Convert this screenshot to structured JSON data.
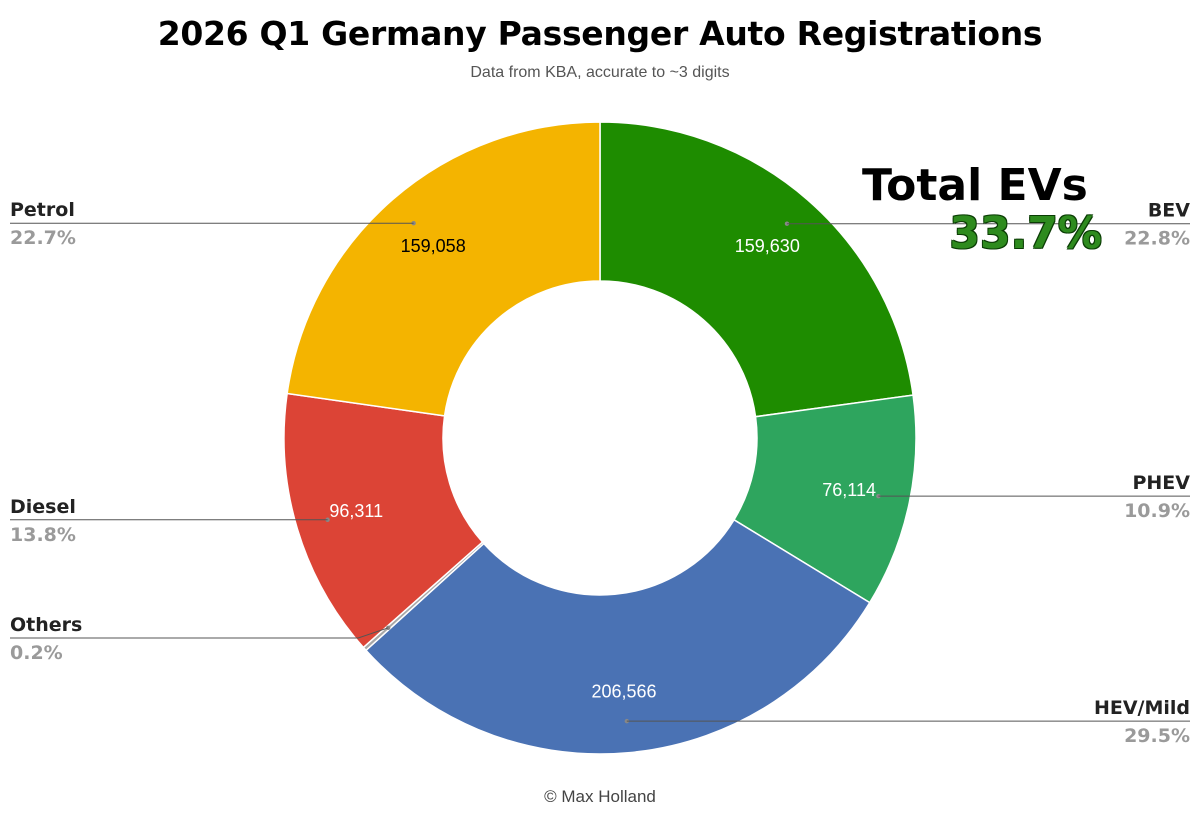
{
  "chart_data": {
    "type": "pie",
    "title": "2026 Q1 Germany Passenger Auto Registrations",
    "subtitle": "Data from KBA, accurate to ~3 digits",
    "donut": true,
    "legend": "outside-labels",
    "slices": [
      {
        "name": "BEV",
        "value": 159630,
        "value_label": "159,630",
        "percent_label": "22.8%",
        "color": "#1e8c00",
        "label_color": "#ffffff"
      },
      {
        "name": "PHEV",
        "value": 76114,
        "value_label": "76,114",
        "percent_label": "10.9%",
        "color": "#2ea55e",
        "label_color": "#ffffff"
      },
      {
        "name": "HEV/Mild",
        "value": 206566,
        "value_label": "206,566",
        "percent_label": "29.5%",
        "color": "#4a72b4",
        "label_color": "#ffffff"
      },
      {
        "name": "Others",
        "value": 1400,
        "value_label": "",
        "percent_label": "0.2%",
        "color": "#a8a8a8",
        "label_color": "#ffffff"
      },
      {
        "name": "Diesel",
        "value": 96311,
        "value_label": "96,311",
        "percent_label": "13.8%",
        "color": "#dc4436",
        "label_color": "#ffffff"
      },
      {
        "name": "Petrol",
        "value": 159058,
        "value_label": "159,058",
        "percent_label": "22.7%",
        "color": "#f4b400",
        "label_color": "#000000"
      }
    ],
    "annotation": {
      "label": "Total EVs",
      "value": "33.7%",
      "color": "#2e8b1e"
    }
  },
  "footer": {
    "copyright": "© Max Holland"
  }
}
